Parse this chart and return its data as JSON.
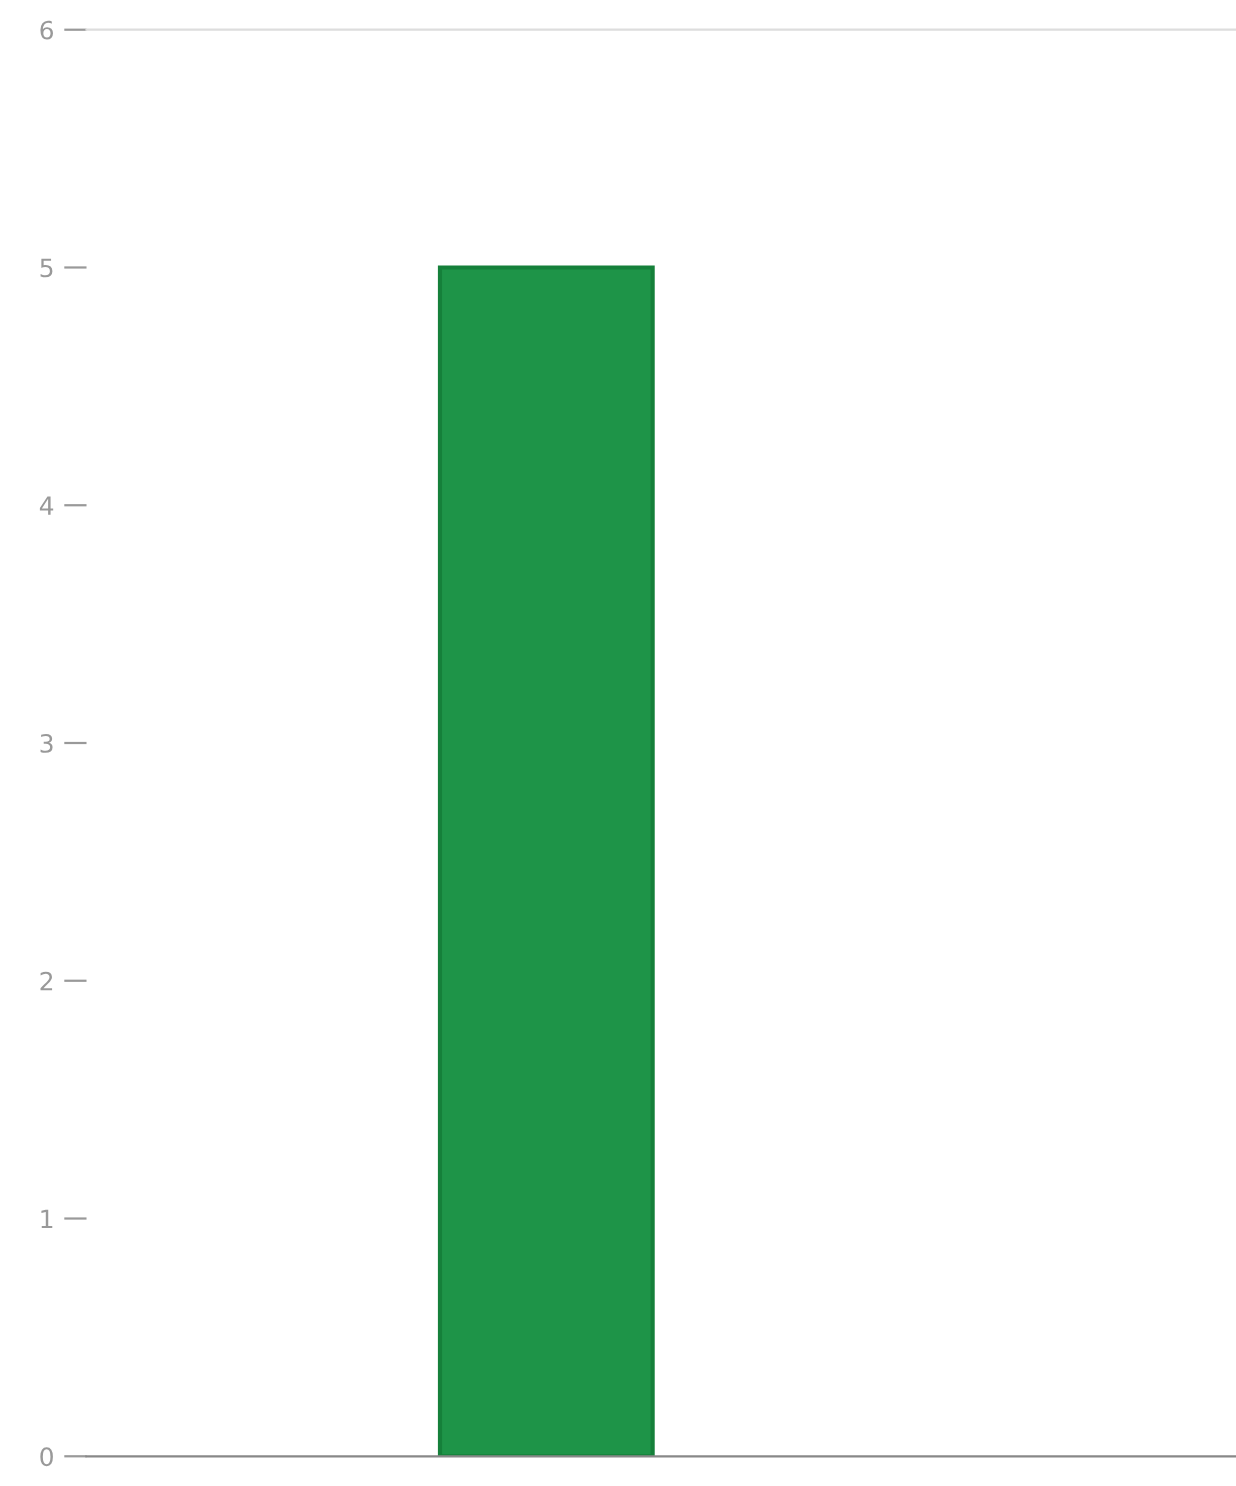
{
  "chart_data": {
    "type": "bar",
    "categories": [
      null
    ],
    "values": [
      5
    ],
    "color": "#1e9448",
    "ylim": [
      0,
      6
    ],
    "yticks": [
      0,
      1,
      2,
      3,
      4,
      5,
      6
    ],
    "grid": false,
    "tick_labels": "y"
  }
}
